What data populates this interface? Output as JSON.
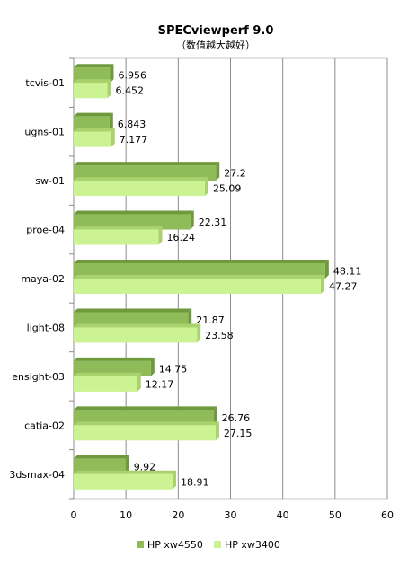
{
  "chart_data": {
    "type": "bar",
    "orientation": "horizontal",
    "title": "SPECviewperf 9.0",
    "subtitle": "（数值越大越好）",
    "categories": [
      "tcvis-01",
      "ugns-01",
      "sw-01",
      "proe-04",
      "maya-02",
      "light-08",
      "ensight-03",
      "catia-02",
      "3dsmax-04"
    ],
    "series": [
      {
        "name": "HP xw4550",
        "color": "#8fbc58",
        "values": [
          6.956,
          6.843,
          27.2,
          22.31,
          48.11,
          21.87,
          14.75,
          26.76,
          9.92
        ],
        "labels": [
          "6.956",
          "6.843",
          "27.2",
          "22.31",
          "48.11",
          "21.87",
          "14.75",
          "26.76",
          "9.92"
        ]
      },
      {
        "name": "HP xw3400",
        "color": "#ccf393",
        "values": [
          6.452,
          7.177,
          25.09,
          16.24,
          47.27,
          23.58,
          12.17,
          27.15,
          18.91
        ],
        "labels": [
          "6.452",
          "7.177",
          "25.09",
          "16.24",
          "47.27",
          "23.58",
          "12.17",
          "27.15",
          "18.91"
        ]
      }
    ],
    "xlim": [
      0,
      60
    ],
    "xticks": [
      "0",
      "10",
      "20",
      "30",
      "40",
      "50",
      "60"
    ],
    "grid": true,
    "legend_position": "bottom"
  }
}
